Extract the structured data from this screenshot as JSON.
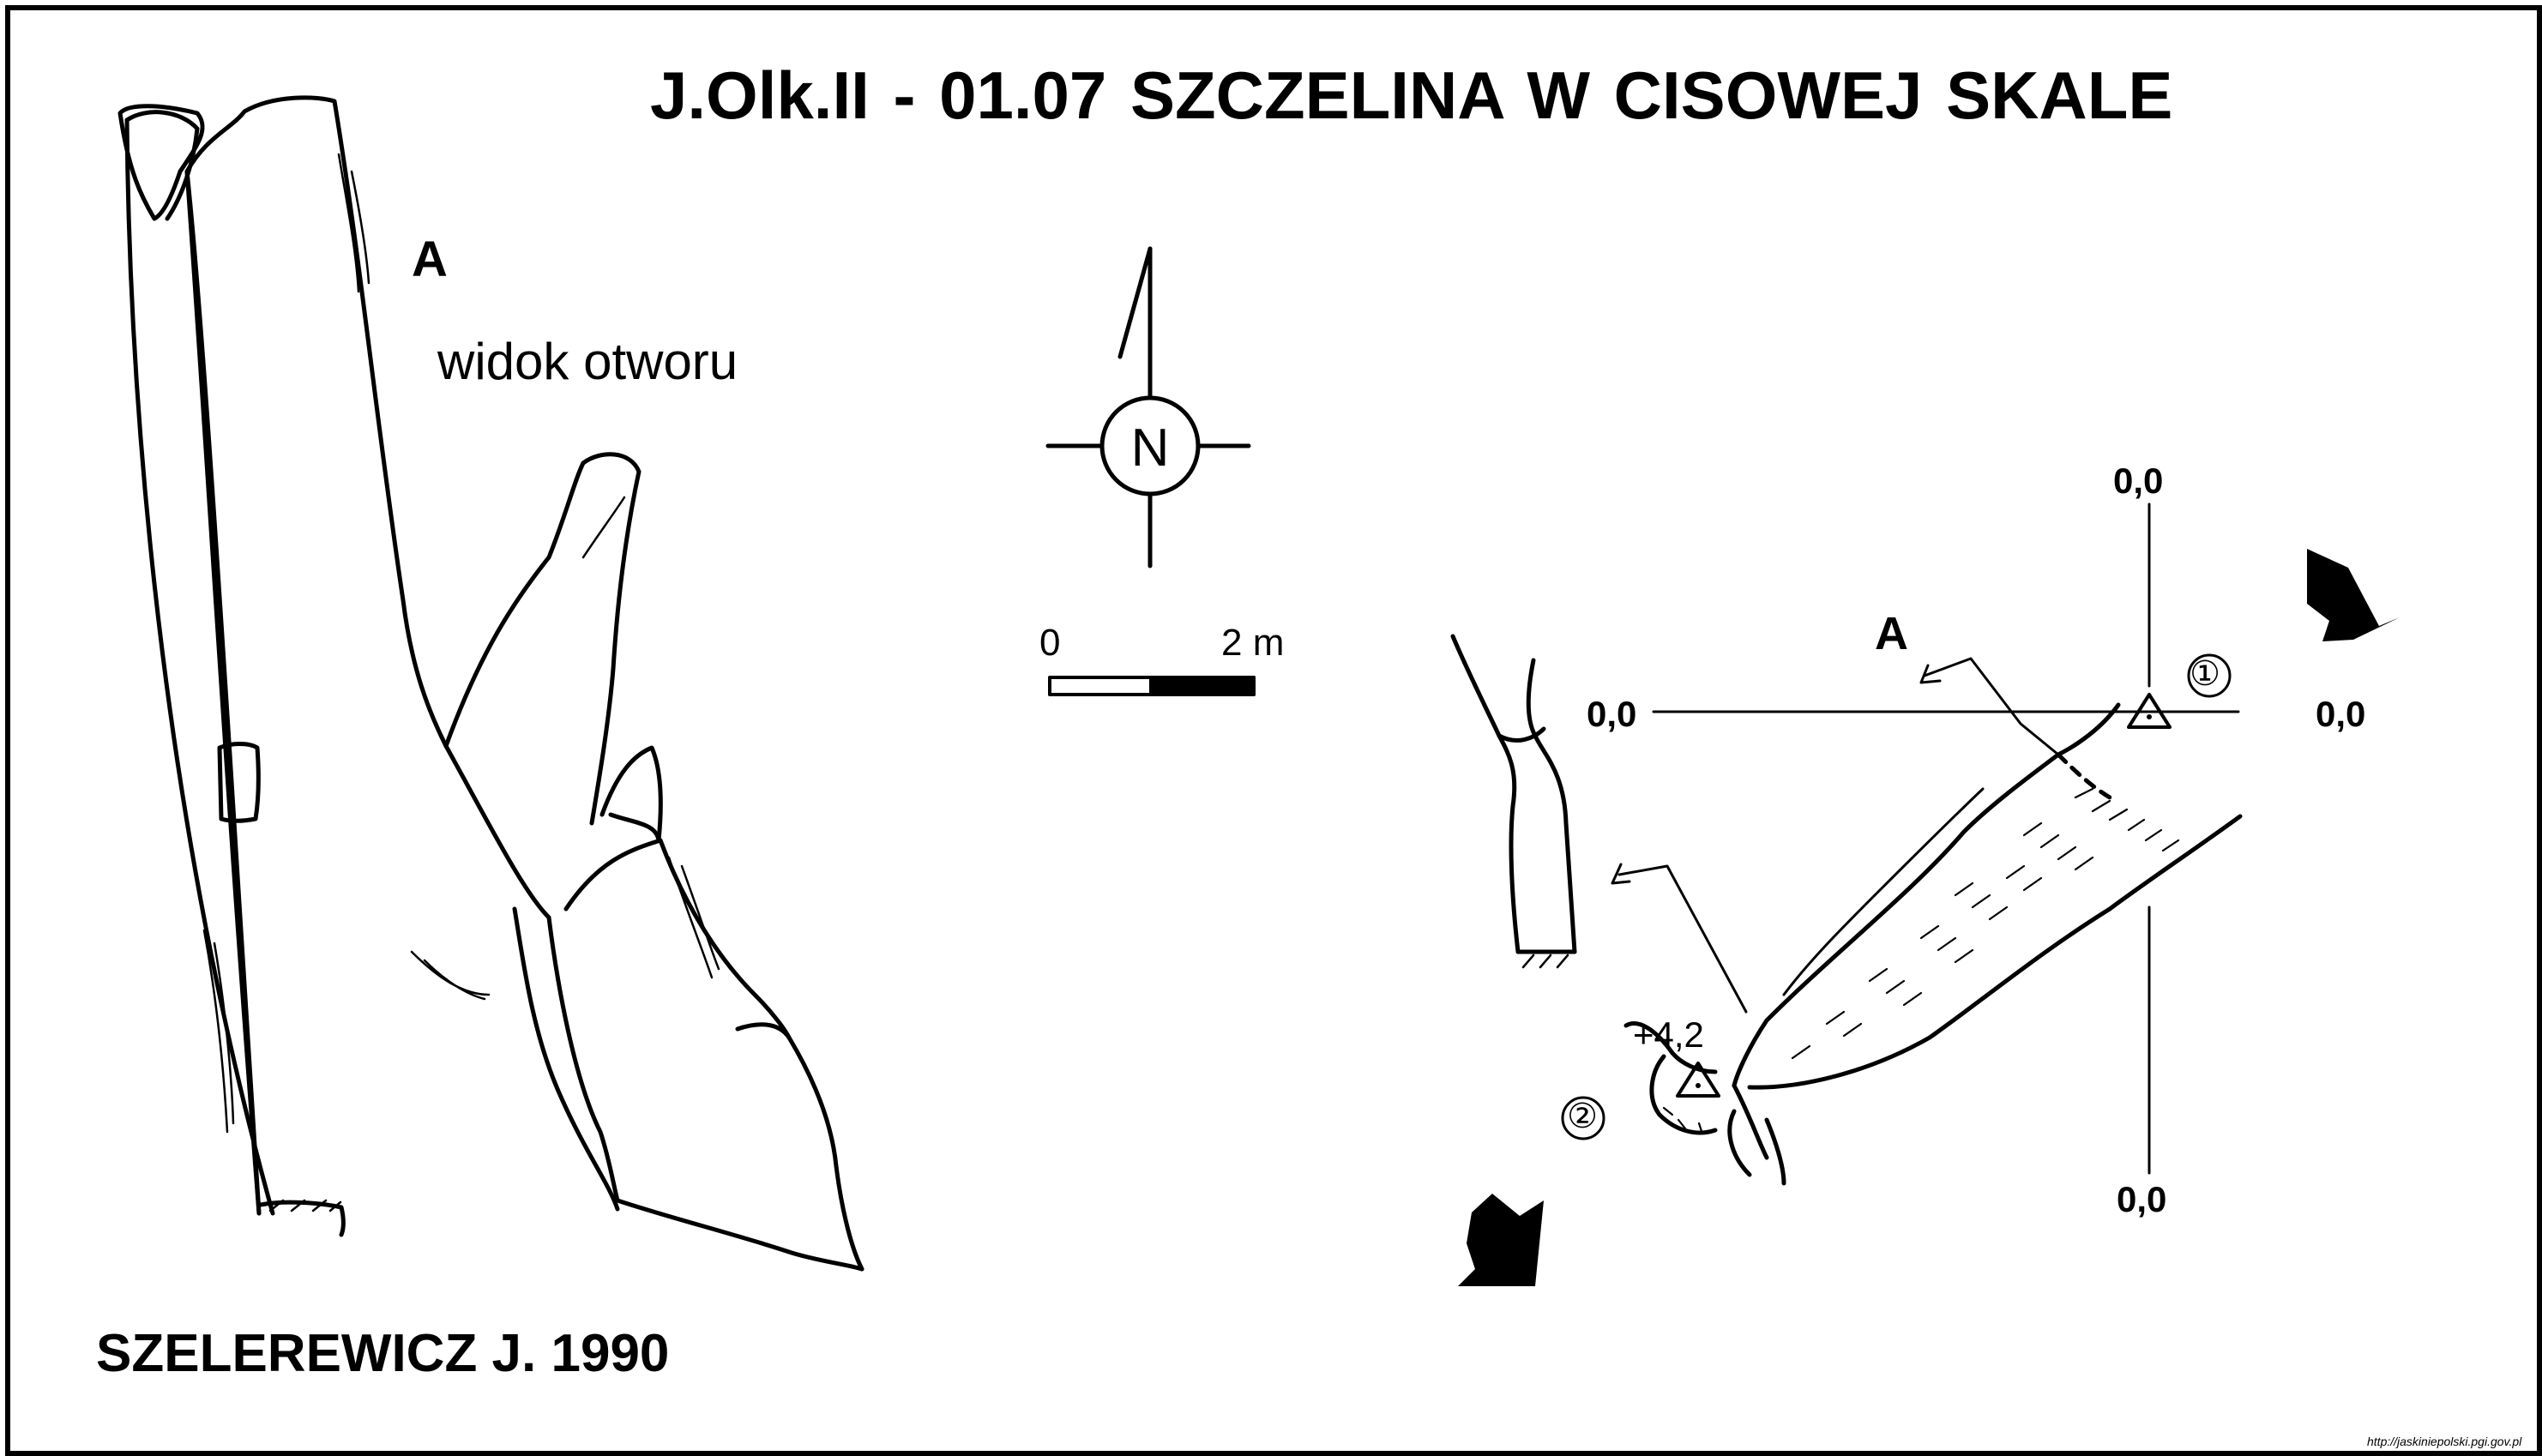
{
  "title": "J.Olk.II - 01.07  SZCZELINA  W CISOWEJ SKALE",
  "author": "SZELEREWICZ J. 1990",
  "entrance_view": {
    "letter": "A",
    "caption": "widok otworu"
  },
  "north_arrow": {
    "letter": "N"
  },
  "scale_bar": {
    "min_label": "0",
    "max_label": "2 m"
  },
  "plan": {
    "section_letter": "A",
    "levels": {
      "top": "0,0",
      "left": "0,0",
      "right": "0,0",
      "bottom": "0,0"
    },
    "height_mark": "+4,2",
    "entrances": [
      "①",
      "②"
    ]
  },
  "source": "http://jaskiniepolski.pgi.gov.pl",
  "colors": {
    "ink": "#000000",
    "paper": "#ffffff"
  }
}
